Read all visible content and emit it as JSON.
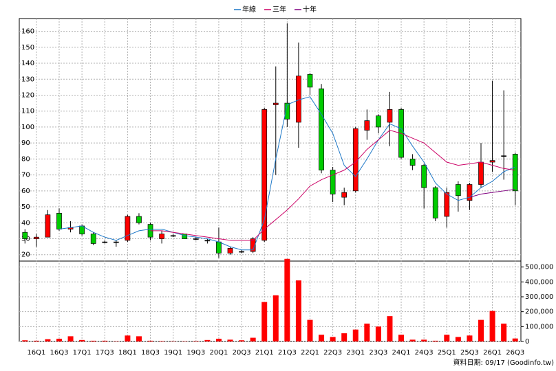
{
  "chart_data": {
    "type": "candlestick",
    "legend": [
      "年線",
      "三年",
      "十年"
    ],
    "categories": [
      null,
      "16Q1",
      null,
      "16Q3",
      null,
      "17Q1",
      null,
      "17Q3",
      null,
      "18Q1",
      null,
      "18Q3",
      null,
      "19Q1",
      null,
      "19Q3",
      null,
      "20Q1",
      null,
      "20Q3",
      null,
      "21Q1",
      null,
      "21Q3",
      null,
      "22Q1",
      null,
      "22Q3",
      null,
      "23Q1",
      null,
      "23Q3",
      null,
      "24Q1",
      null,
      "24Q3",
      null,
      "25Q1",
      null,
      "25Q3",
      null,
      "26Q1",
      null,
      "26Q3"
    ],
    "open": [
      34,
      30,
      31,
      46,
      36,
      38,
      33,
      28,
      28,
      29,
      44,
      39,
      30,
      32,
      33,
      30,
      29,
      28,
      21,
      22,
      22,
      29,
      114,
      115,
      103,
      133,
      124,
      73,
      56,
      60,
      98,
      107,
      103,
      111,
      80,
      76,
      62,
      44,
      64,
      54,
      64,
      78,
      82,
      83
    ],
    "high": [
      36,
      33,
      48,
      49,
      41,
      39,
      34,
      29,
      29,
      45,
      46,
      40,
      35,
      33,
      33,
      31,
      30,
      37,
      25,
      23,
      31,
      112,
      138,
      165,
      153,
      134,
      127,
      75,
      62,
      100,
      111,
      108,
      122,
      112,
      83,
      77,
      63,
      62,
      66,
      65,
      90,
      129,
      123,
      84
    ],
    "low": [
      27,
      25,
      31,
      35,
      34,
      32,
      26,
      27,
      25,
      28,
      39,
      29,
      27,
      31,
      30,
      29,
      27,
      18,
      20,
      21,
      21,
      28,
      70,
      100,
      87,
      120,
      71,
      53,
      51,
      59,
      92,
      96,
      88,
      80,
      73,
      49,
      41,
      37,
      47,
      48,
      62,
      72,
      67,
      51
    ],
    "close": [
      30,
      31,
      45,
      36,
      37,
      33,
      27,
      28,
      28,
      44,
      40,
      31,
      33,
      32,
      30,
      30,
      29,
      21,
      24,
      22,
      30,
      111,
      115,
      105,
      132,
      125,
      73,
      58,
      59,
      99,
      104,
      100,
      111,
      81,
      76,
      62,
      43,
      59,
      57,
      64,
      78,
      79,
      82,
      60
    ],
    "up_color": "#ff0000",
    "down_color": "#00cc00",
    "ylim": [
      16,
      168
    ],
    "yticks": [
      20,
      30,
      40,
      50,
      60,
      70,
      80,
      90,
      100,
      110,
      120,
      130,
      140,
      150,
      160
    ],
    "series": [
      {
        "name": "年線",
        "color": "#1e78c8",
        "values": [
          null,
          null,
          null,
          36,
          37,
          38,
          34,
          31,
          29,
          32,
          35,
          36,
          36,
          34,
          32,
          31,
          30,
          28,
          25,
          23,
          23,
          42,
          80,
          114,
          117,
          119,
          108,
          96,
          76,
          69,
          80,
          92,
          102,
          99,
          88,
          78,
          65,
          58,
          54,
          56,
          62,
          66,
          72,
          75
        ]
      },
      {
        "name": "三年",
        "color": "#cc0066",
        "values": [
          null,
          null,
          null,
          null,
          null,
          null,
          null,
          null,
          null,
          null,
          null,
          35,
          35,
          34,
          33,
          32,
          31,
          30,
          29,
          29,
          29,
          36,
          42,
          48,
          55,
          63,
          67,
          70,
          73,
          78,
          86,
          92,
          98,
          96,
          93,
          90,
          84,
          78,
          76,
          77,
          78,
          76,
          74,
          73
        ]
      },
      {
        "name": "十年",
        "color": "#800080",
        "values": [
          null,
          null,
          null,
          null,
          null,
          null,
          null,
          null,
          null,
          null,
          null,
          null,
          null,
          null,
          null,
          null,
          null,
          null,
          null,
          null,
          null,
          null,
          null,
          null,
          null,
          null,
          null,
          null,
          null,
          null,
          null,
          null,
          null,
          null,
          null,
          null,
          null,
          null,
          null,
          56,
          58,
          59,
          60,
          61
        ]
      }
    ],
    "volume": {
      "color": "#ff0000",
      "values": [
        8000,
        5000,
        15000,
        18000,
        35000,
        10000,
        5000,
        5000,
        2000,
        40000,
        35000,
        5000,
        3000,
        2000,
        2000,
        3000,
        10000,
        18000,
        12000,
        8000,
        25000,
        265000,
        310000,
        555000,
        410000,
        145000,
        45000,
        30000,
        55000,
        80000,
        120000,
        100000,
        170000,
        45000,
        12000,
        12000,
        5000,
        45000,
        30000,
        40000,
        145000,
        205000,
        120000,
        20000
      ]
    },
    "y2lim": [
      0,
      540000
    ],
    "y2ticks": [
      0,
      {
        "value": 100000,
        "label": "100,000"
      },
      {
        "value": 200000,
        "label": "200,000"
      },
      {
        "value": 300000,
        "label": "300,000"
      },
      {
        "value": 400000,
        "label": "400,000"
      },
      {
        "value": 500000,
        "label": "500,000"
      }
    ],
    "grid": true,
    "note": "資料日期: 09/17 (Goodinfo.tw)"
  }
}
